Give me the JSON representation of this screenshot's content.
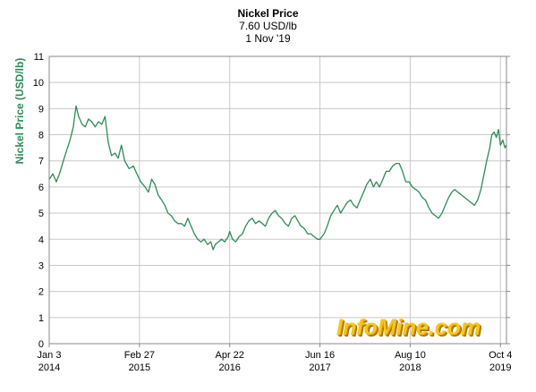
{
  "header": {
    "title": "Nickel Price",
    "price_line": "7.60 USD/lb",
    "date_line": "1 Nov '19"
  },
  "watermark": {
    "text": "InfoMine.com"
  },
  "colors": {
    "line": "#2e8b57",
    "ylabel": "#2e8b57",
    "grid": "#c8c8c8",
    "watermark": "#f5c61a"
  },
  "chart_data": {
    "type": "line",
    "title": "Nickel Price",
    "ylabel": "Nickel Price (USD/lb)",
    "xlabel": "",
    "ylim": [
      0,
      11
    ],
    "yticks": [
      0,
      1,
      2,
      3,
      4,
      5,
      6,
      7,
      8,
      9,
      10,
      11
    ],
    "xlim": [
      "2014-01-03",
      "2019-11-01"
    ],
    "xticks": [
      {
        "date": "2014-01-03",
        "line1": "Jan 3",
        "line2": "2014"
      },
      {
        "date": "2015-02-27",
        "line1": "Feb 27",
        "line2": "2015"
      },
      {
        "date": "2016-04-22",
        "line1": "Apr 22",
        "line2": "2016"
      },
      {
        "date": "2017-06-16",
        "line1": "Jun 16",
        "line2": "2017"
      },
      {
        "date": "2018-08-10",
        "line1": "Aug 10",
        "line2": "2018"
      },
      {
        "date": "2019-10-04",
        "line1": "Oct 4",
        "line2": "2019"
      }
    ],
    "grid": true,
    "series": [
      {
        "points": [
          [
            "2014-01-03",
            6.3
          ],
          [
            "2014-01-20",
            6.5
          ],
          [
            "2014-02-05",
            6.2
          ],
          [
            "2014-02-20",
            6.5
          ],
          [
            "2014-03-10",
            7.0
          ],
          [
            "2014-03-25",
            7.4
          ],
          [
            "2014-04-10",
            7.8
          ],
          [
            "2014-04-25",
            8.3
          ],
          [
            "2014-05-08",
            9.1
          ],
          [
            "2014-05-20",
            8.7
          ],
          [
            "2014-06-05",
            8.4
          ],
          [
            "2014-06-20",
            8.3
          ],
          [
            "2014-07-05",
            8.6
          ],
          [
            "2014-07-20",
            8.5
          ],
          [
            "2014-08-05",
            8.3
          ],
          [
            "2014-08-20",
            8.5
          ],
          [
            "2014-09-05",
            8.4
          ],
          [
            "2014-09-20",
            8.7
          ],
          [
            "2014-10-05",
            7.7
          ],
          [
            "2014-10-20",
            7.2
          ],
          [
            "2014-11-05",
            7.3
          ],
          [
            "2014-11-20",
            7.1
          ],
          [
            "2014-12-05",
            7.6
          ],
          [
            "2014-12-20",
            7.0
          ],
          [
            "2015-01-10",
            6.7
          ],
          [
            "2015-01-30",
            6.8
          ],
          [
            "2015-02-15",
            6.5
          ],
          [
            "2015-03-05",
            6.2
          ],
          [
            "2015-03-25",
            6.0
          ],
          [
            "2015-04-10",
            5.8
          ],
          [
            "2015-04-25",
            6.3
          ],
          [
            "2015-05-10",
            6.1
          ],
          [
            "2015-05-25",
            5.7
          ],
          [
            "2015-06-10",
            5.5
          ],
          [
            "2015-06-25",
            5.3
          ],
          [
            "2015-07-10",
            5.0
          ],
          [
            "2015-07-25",
            4.9
          ],
          [
            "2015-08-10",
            4.7
          ],
          [
            "2015-08-25",
            4.6
          ],
          [
            "2015-09-10",
            4.6
          ],
          [
            "2015-09-25",
            4.5
          ],
          [
            "2015-10-10",
            4.8
          ],
          [
            "2015-10-25",
            4.5
          ],
          [
            "2015-11-10",
            4.2
          ],
          [
            "2015-11-25",
            4.0
          ],
          [
            "2015-12-10",
            3.9
          ],
          [
            "2015-12-25",
            4.0
          ],
          [
            "2016-01-10",
            3.8
          ],
          [
            "2016-01-25",
            3.9
          ],
          [
            "2016-02-05",
            3.6
          ],
          [
            "2016-02-15",
            3.8
          ],
          [
            "2016-03-01",
            3.9
          ],
          [
            "2016-03-15",
            4.0
          ],
          [
            "2016-03-30",
            3.9
          ],
          [
            "2016-04-15",
            4.1
          ],
          [
            "2016-04-22",
            4.3
          ],
          [
            "2016-05-05",
            4.0
          ],
          [
            "2016-05-20",
            3.9
          ],
          [
            "2016-06-05",
            4.1
          ],
          [
            "2016-06-20",
            4.2
          ],
          [
            "2016-07-05",
            4.5
          ],
          [
            "2016-07-20",
            4.7
          ],
          [
            "2016-08-05",
            4.8
          ],
          [
            "2016-08-20",
            4.6
          ],
          [
            "2016-09-05",
            4.7
          ],
          [
            "2016-09-20",
            4.6
          ],
          [
            "2016-10-05",
            4.5
          ],
          [
            "2016-10-20",
            4.8
          ],
          [
            "2016-11-05",
            5.0
          ],
          [
            "2016-11-20",
            5.1
          ],
          [
            "2016-12-05",
            4.9
          ],
          [
            "2016-12-20",
            4.8
          ],
          [
            "2017-01-05",
            4.6
          ],
          [
            "2017-01-20",
            4.5
          ],
          [
            "2017-02-05",
            4.8
          ],
          [
            "2017-02-20",
            4.9
          ],
          [
            "2017-03-05",
            4.7
          ],
          [
            "2017-03-20",
            4.5
          ],
          [
            "2017-04-05",
            4.4
          ],
          [
            "2017-04-20",
            4.2
          ],
          [
            "2017-05-05",
            4.2
          ],
          [
            "2017-05-20",
            4.1
          ],
          [
            "2017-06-05",
            4.0
          ],
          [
            "2017-06-16",
            4.0
          ],
          [
            "2017-07-05",
            4.2
          ],
          [
            "2017-07-20",
            4.5
          ],
          [
            "2017-08-05",
            4.9
          ],
          [
            "2017-08-20",
            5.1
          ],
          [
            "2017-09-05",
            5.3
          ],
          [
            "2017-09-20",
            5.0
          ],
          [
            "2017-10-05",
            5.2
          ],
          [
            "2017-10-20",
            5.4
          ],
          [
            "2017-11-05",
            5.5
          ],
          [
            "2017-11-20",
            5.3
          ],
          [
            "2017-12-05",
            5.2
          ],
          [
            "2017-12-20",
            5.5
          ],
          [
            "2018-01-05",
            5.8
          ],
          [
            "2018-01-20",
            6.1
          ],
          [
            "2018-02-05",
            6.3
          ],
          [
            "2018-02-20",
            6.0
          ],
          [
            "2018-03-05",
            6.2
          ],
          [
            "2018-03-20",
            6.0
          ],
          [
            "2018-04-05",
            6.3
          ],
          [
            "2018-04-20",
            6.6
          ],
          [
            "2018-05-05",
            6.6
          ],
          [
            "2018-05-20",
            6.8
          ],
          [
            "2018-06-05",
            6.9
          ],
          [
            "2018-06-20",
            6.9
          ],
          [
            "2018-07-05",
            6.6
          ],
          [
            "2018-07-20",
            6.2
          ],
          [
            "2018-08-05",
            6.2
          ],
          [
            "2018-08-20",
            6.0
          ],
          [
            "2018-09-05",
            5.9
          ],
          [
            "2018-09-20",
            5.8
          ],
          [
            "2018-10-05",
            5.6
          ],
          [
            "2018-10-20",
            5.5
          ],
          [
            "2018-11-05",
            5.2
          ],
          [
            "2018-11-20",
            5.0
          ],
          [
            "2018-12-05",
            4.9
          ],
          [
            "2018-12-20",
            4.8
          ],
          [
            "2019-01-05",
            5.0
          ],
          [
            "2019-01-20",
            5.3
          ],
          [
            "2019-02-05",
            5.6
          ],
          [
            "2019-02-20",
            5.8
          ],
          [
            "2019-03-05",
            5.9
          ],
          [
            "2019-03-20",
            5.8
          ],
          [
            "2019-04-05",
            5.7
          ],
          [
            "2019-04-20",
            5.6
          ],
          [
            "2019-05-05",
            5.5
          ],
          [
            "2019-05-20",
            5.4
          ],
          [
            "2019-06-05",
            5.3
          ],
          [
            "2019-06-20",
            5.5
          ],
          [
            "2019-07-05",
            5.9
          ],
          [
            "2019-07-20",
            6.5
          ],
          [
            "2019-08-01",
            7.0
          ],
          [
            "2019-08-15",
            7.5
          ],
          [
            "2019-08-25",
            8.0
          ],
          [
            "2019-09-05",
            8.1
          ],
          [
            "2019-09-15",
            7.9
          ],
          [
            "2019-09-25",
            8.2
          ],
          [
            "2019-10-04",
            7.6
          ],
          [
            "2019-10-15",
            7.8
          ],
          [
            "2019-10-25",
            7.5
          ],
          [
            "2019-11-01",
            7.6
          ]
        ]
      }
    ]
  }
}
